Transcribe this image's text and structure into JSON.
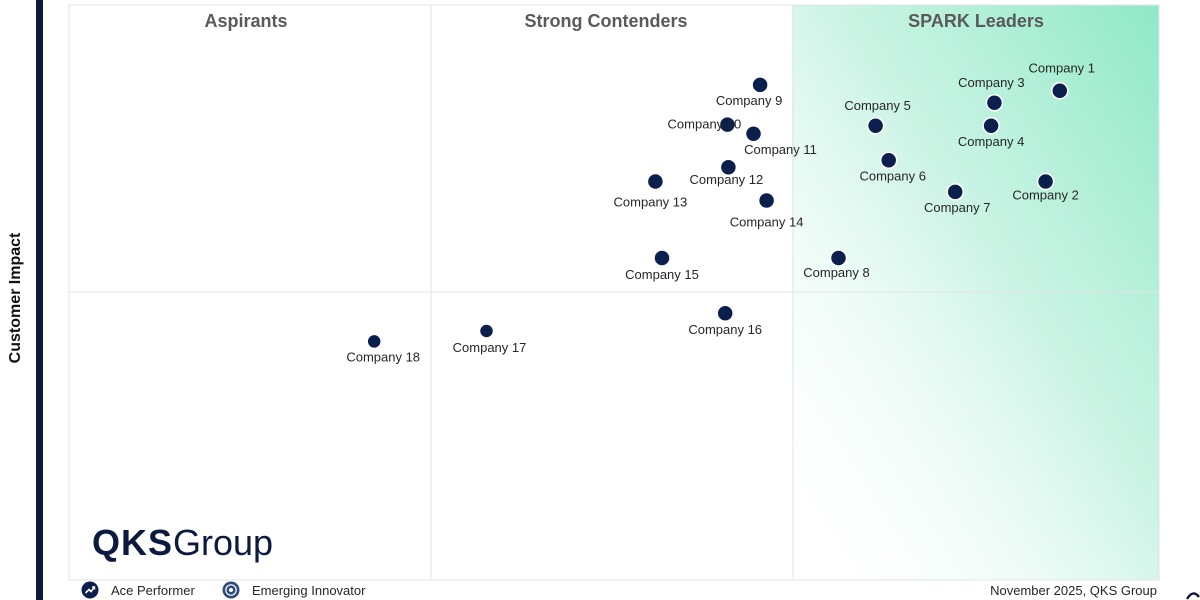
{
  "chart_data": {
    "type": "scatter",
    "title": "",
    "ylabel": "Customer Impact",
    "xlabel": "",
    "xlim": [
      0,
      100
    ],
    "ylim": [
      0,
      100
    ],
    "quadrants": [
      {
        "label": "Aspirants"
      },
      {
        "label": "Strong Contenders"
      },
      {
        "label": "SPARK Leaders"
      }
    ],
    "points": [
      {
        "name": "Company 1",
        "x": 90.9,
        "y": 85.1
      },
      {
        "name": "Company 2",
        "x": 89.6,
        "y": 69.3
      },
      {
        "name": "Company 3",
        "x": 84.9,
        "y": 83.0
      },
      {
        "name": "Company 4",
        "x": 84.6,
        "y": 79.0
      },
      {
        "name": "Company 5",
        "x": 74.0,
        "y": 79.0
      },
      {
        "name": "Company 6",
        "x": 75.2,
        "y": 73.0
      },
      {
        "name": "Company 7",
        "x": 81.3,
        "y": 67.5
      },
      {
        "name": "Company 8",
        "x": 70.6,
        "y": 56.0
      },
      {
        "name": "Company 9",
        "x": 63.4,
        "y": 86.1
      },
      {
        "name": "Company 10",
        "x": 60.4,
        "y": 79.2
      },
      {
        "name": "Company 11",
        "x": 62.8,
        "y": 77.6
      },
      {
        "name": "Company 12",
        "x": 60.5,
        "y": 71.8
      },
      {
        "name": "Company 13",
        "x": 53.8,
        "y": 69.3
      },
      {
        "name": "Company 14",
        "x": 64.0,
        "y": 66.0
      },
      {
        "name": "Company 15",
        "x": 54.4,
        "y": 56.0
      },
      {
        "name": "Company 16",
        "x": 60.2,
        "y": 46.4
      },
      {
        "name": "Company 17",
        "x": 38.3,
        "y": 43.3
      },
      {
        "name": "Company 18",
        "x": 28.0,
        "y": 41.5
      }
    ]
  },
  "y_axis_label": "Customer Impact",
  "logo": {
    "strong": "QKS",
    "light": "Group"
  },
  "legend": {
    "ace_performer": "Ace Performer",
    "emerging_innovator": "Emerging Innovator"
  },
  "footer_note": "November 2025, QKS Group",
  "colors": {
    "marker": "#0b1f4d",
    "leader_gradient": "#8fe8c8",
    "gridline": "#e3e3e3"
  }
}
